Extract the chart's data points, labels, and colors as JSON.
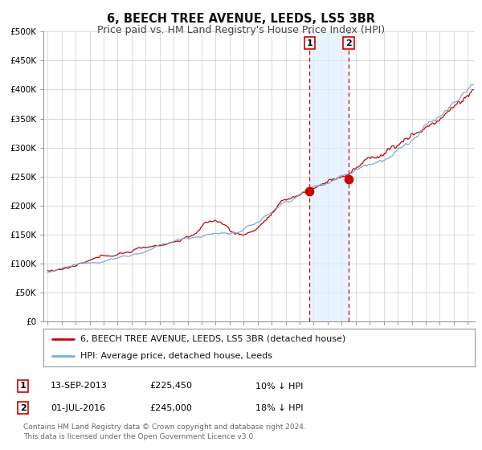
{
  "title": "6, BEECH TREE AVENUE, LEEDS, LS5 3BR",
  "subtitle": "Price paid vs. HM Land Registry's House Price Index (HPI)",
  "background_color": "#ffffff",
  "plot_bg_color": "#ffffff",
  "grid_color": "#cccccc",
  "hpi_color": "#7bafd4",
  "hpi_fill_color": "#c8dff0",
  "property_color": "#cc0000",
  "ylim": [
    0,
    500000
  ],
  "yticks": [
    0,
    50000,
    100000,
    150000,
    200000,
    250000,
    300000,
    350000,
    400000,
    450000,
    500000
  ],
  "ytick_labels": [
    "£0",
    "£50K",
    "£100K",
    "£150K",
    "£200K",
    "£250K",
    "£300K",
    "£350K",
    "£400K",
    "£450K",
    "£500K"
  ],
  "xstart": 1994.7,
  "xend": 2025.5,
  "sale1_date": 2013.71,
  "sale1_price": 225450,
  "sale1_label": "1",
  "sale1_hpi_pct": "10% ↓ HPI",
  "sale1_date_str": "13-SEP-2013",
  "sale2_date": 2016.5,
  "sale2_price": 245000,
  "sale2_label": "2",
  "sale2_hpi_pct": "18% ↓ HPI",
  "sale2_date_str": "01-JUL-2016",
  "legend_property_label": "6, BEECH TREE AVENUE, LEEDS, LS5 3BR (detached house)",
  "legend_hpi_label": "HPI: Average price, detached house, Leeds",
  "footer_text": "Contains HM Land Registry data © Crown copyright and database right 2024.\nThis data is licensed under the Open Government Licence v3.0.",
  "title_fontsize": 10.5,
  "subtitle_fontsize": 9,
  "tick_fontsize": 7.5,
  "legend_fontsize": 8,
  "annotation_fontsize": 8
}
